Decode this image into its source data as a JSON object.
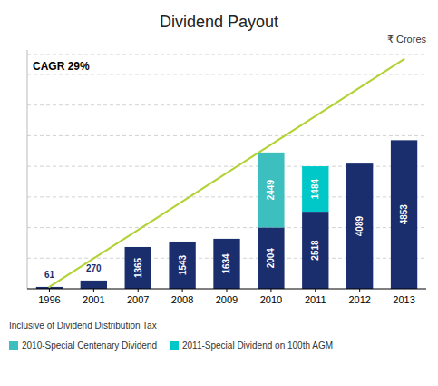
{
  "chart_data": {
    "type": "bar",
    "title": "Dividend Payout",
    "ylabel": "₹ Crores",
    "annotations": [
      "CAGR 29%"
    ],
    "footnote": "Inclusive of Dividend Distribution Tax",
    "categories": [
      "1996",
      "2001",
      "2007",
      "2008",
      "2009",
      "2010",
      "2011",
      "2012",
      "2013"
    ],
    "series": [
      {
        "color": "#1a2e6e",
        "values": [
          61,
          270,
          1365,
          1543,
          1634,
          2004,
          2518,
          4089,
          4853
        ]
      },
      {
        "name": "2010-Special Centenary Dividend",
        "color": "#3dbfbf",
        "values": [
          null,
          null,
          null,
          null,
          null,
          2449,
          null,
          null,
          null
        ]
      },
      {
        "name": "2011-Special Dividend on 100th AGM",
        "color": "#00c8c8",
        "values": [
          null,
          null,
          null,
          null,
          null,
          null,
          1484,
          null,
          null
        ]
      }
    ],
    "trend": {
      "type": "line",
      "color": "#b2d235",
      "categories": [
        "1996",
        "2013"
      ],
      "values": [
        61,
        7500
      ]
    },
    "stacked": true,
    "data_labels": true,
    "tick_labels": "x",
    "grid": true,
    "legend": "bottom",
    "ylim": [
      0,
      7800
    ],
    "yticks": [
      1000,
      2000,
      3000,
      4000,
      5000,
      6000,
      7000,
      7650
    ]
  }
}
